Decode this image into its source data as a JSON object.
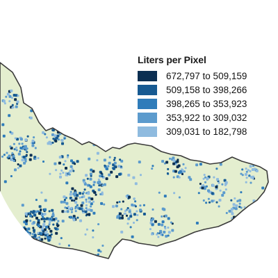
{
  "legend": {
    "title": "Liters per Pixel",
    "items": [
      {
        "label": "672,797 to 509,159",
        "color": "#0b2f52"
      },
      {
        "label": "509,158 to 398,266",
        "color": "#175a92"
      },
      {
        "label": "398,265 to 353,923",
        "color": "#2f7cba"
      },
      {
        "label": "353,922 to 309,032",
        "color": "#5c9bcd"
      },
      {
        "label": "309,031 to 182,798",
        "color": "#8fbbdf"
      }
    ]
  },
  "map": {
    "land_color": "#e4eecf",
    "outline_color": "#3a3a3a"
  }
}
